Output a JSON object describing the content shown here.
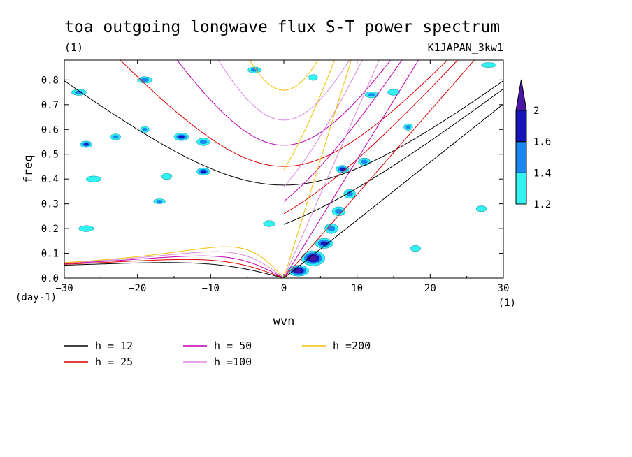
{
  "chart_data": {
    "type": "heatmap",
    "title": "toa outgoing longwave flux S-T power spectrum",
    "subtitle_left": "(1)",
    "subtitle_right": "K1JAPAN_3kw1",
    "xlabel": "wvn",
    "ylabel": "freq",
    "x_unit_label": "(1)",
    "y_unit_label": "(day-1)",
    "xlim": [
      -30,
      30
    ],
    "ylim": [
      0,
      0.88
    ],
    "xticks": [
      -30,
      -20,
      -10,
      0,
      10,
      20,
      30
    ],
    "yticks": [
      0.0,
      0.1,
      0.2,
      0.3,
      0.4,
      0.5,
      0.6,
      0.7,
      0.8
    ],
    "grid": false,
    "colorbar": {
      "levels": [
        1.2,
        1.4,
        1.6,
        2
      ],
      "colors": [
        "#33f2f2",
        "#1a86f2",
        "#1616b8",
        "#4a16a6"
      ],
      "tick_labels": [
        "1.2",
        "1.4",
        "1.6",
        "2"
      ]
    },
    "dispersion_curves": [
      {
        "label": "h = 12",
        "h": 12,
        "color": "#000000"
      },
      {
        "label": "h = 25",
        "h": 25,
        "color": "#e00000"
      },
      {
        "label": "h = 50",
        "h": 50,
        "color": "#c000b0"
      },
      {
        "label": "h =100",
        "h": 100,
        "color": "#d888dd"
      },
      {
        "label": "h =200",
        "h": 200,
        "color": "#f0c000"
      }
    ],
    "spectral_peaks": [
      {
        "x": 2.0,
        "y": 0.03,
        "sx": 1.4,
        "sy": 0.022,
        "level": 2
      },
      {
        "x": 4.0,
        "y": 0.08,
        "sx": 1.6,
        "sy": 0.03,
        "level": 2
      },
      {
        "x": 5.5,
        "y": 0.14,
        "sx": 1.2,
        "sy": 0.02,
        "level": 1.6
      },
      {
        "x": 6.5,
        "y": 0.2,
        "sx": 0.9,
        "sy": 0.02,
        "level": 1.4
      },
      {
        "x": 7.5,
        "y": 0.27,
        "sx": 0.9,
        "sy": 0.018,
        "level": 1.4
      },
      {
        "x": 9.0,
        "y": 0.34,
        "sx": 0.8,
        "sy": 0.018,
        "level": 1.4
      },
      {
        "x": 8.0,
        "y": 0.44,
        "sx": 0.9,
        "sy": 0.015,
        "level": 1.6
      },
      {
        "x": 11.0,
        "y": 0.47,
        "sx": 0.8,
        "sy": 0.015,
        "level": 1.4
      },
      {
        "x": -14.0,
        "y": 0.57,
        "sx": 1.0,
        "sy": 0.015,
        "level": 1.6
      },
      {
        "x": -11.0,
        "y": 0.55,
        "sx": 0.9,
        "sy": 0.015,
        "level": 1.4
      },
      {
        "x": -11.0,
        "y": 0.43,
        "sx": 0.9,
        "sy": 0.015,
        "level": 1.6
      },
      {
        "x": -23.0,
        "y": 0.57,
        "sx": 0.7,
        "sy": 0.012,
        "level": 1.4
      },
      {
        "x": -19.0,
        "y": 0.6,
        "sx": 0.6,
        "sy": 0.012,
        "level": 1.4
      },
      {
        "x": -27.0,
        "y": 0.54,
        "sx": 0.8,
        "sy": 0.013,
        "level": 1.6
      },
      {
        "x": -28.0,
        "y": 0.75,
        "sx": 1.0,
        "sy": 0.012,
        "level": 1.4
      },
      {
        "x": -19.0,
        "y": 0.8,
        "sx": 1.0,
        "sy": 0.013,
        "level": 1.4
      },
      {
        "x": -4.0,
        "y": 0.84,
        "sx": 0.9,
        "sy": 0.012,
        "level": 1.4
      },
      {
        "x": 4.0,
        "y": 0.81,
        "sx": 0.6,
        "sy": 0.012,
        "level": 1.2
      },
      {
        "x": 12.0,
        "y": 0.74,
        "sx": 0.9,
        "sy": 0.012,
        "level": 1.4
      },
      {
        "x": 15.0,
        "y": 0.75,
        "sx": 0.8,
        "sy": 0.012,
        "level": 1.2
      },
      {
        "x": 17.0,
        "y": 0.61,
        "sx": 0.6,
        "sy": 0.013,
        "level": 1.4
      },
      {
        "x": 28.0,
        "y": 0.86,
        "sx": 1.0,
        "sy": 0.01,
        "level": 1.2
      },
      {
        "x": -26.0,
        "y": 0.4,
        "sx": 1.0,
        "sy": 0.012,
        "level": 1.2
      },
      {
        "x": -16.0,
        "y": 0.41,
        "sx": 0.7,
        "sy": 0.012,
        "level": 1.2
      },
      {
        "x": -17.0,
        "y": 0.31,
        "sx": 0.8,
        "sy": 0.01,
        "level": 1.4
      },
      {
        "x": -27.0,
        "y": 0.2,
        "sx": 1.0,
        "sy": 0.012,
        "level": 1.2
      },
      {
        "x": -2.0,
        "y": 0.22,
        "sx": 0.8,
        "sy": 0.012,
        "level": 1.2
      },
      {
        "x": 18.0,
        "y": 0.12,
        "sx": 0.7,
        "sy": 0.012,
        "level": 1.2
      },
      {
        "x": 27.0,
        "y": 0.28,
        "sx": 0.7,
        "sy": 0.012,
        "level": 1.2
      }
    ]
  }
}
